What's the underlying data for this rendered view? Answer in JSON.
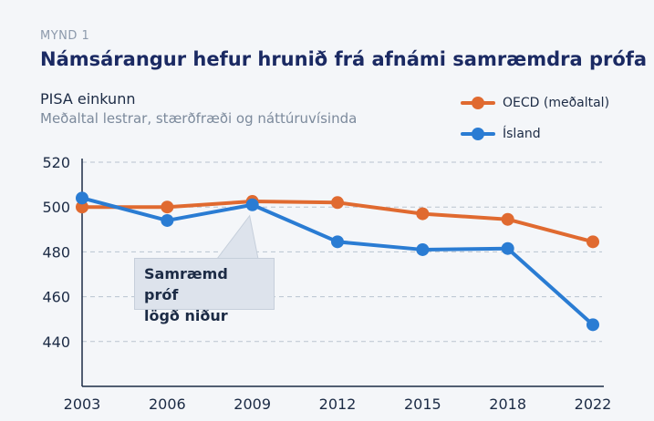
{
  "figure": {
    "label": "MYND 1",
    "title": "Námsárangur hefur hrunið frá afnámi samræmdra prófa",
    "measure_label": "PISA einkunn",
    "measure_sub": "Meðaltal lestrar, stærðfræði og náttúruvísinda"
  },
  "legend": [
    {
      "label": "OECD (meðaltal)",
      "color": "#e06a30"
    },
    {
      "label": "Ísland",
      "color": "#2a7cd3"
    }
  ],
  "annotation": {
    "line1": "Samræmd próf",
    "line2": "lögð niður"
  },
  "chart_data": {
    "type": "line",
    "title": "Námsárangur hefur hrunið frá afnámi samræmdra prófa",
    "xlabel": "",
    "ylabel": "PISA einkunn",
    "categories": [
      "2003",
      "2006",
      "2009",
      "2012",
      "2015",
      "2018",
      "2022"
    ],
    "yticks": [
      520,
      500,
      480,
      460,
      440
    ],
    "ylim": [
      420,
      520
    ],
    "grid": true,
    "legend_position": "top-right",
    "series": [
      {
        "name": "OECD (meðaltal)",
        "color": "#e06a30",
        "values": [
          500,
          500,
          502.5,
          502,
          497,
          494.5,
          484.5
        ]
      },
      {
        "name": "Ísland",
        "color": "#2a7cd3",
        "values": [
          504,
          494,
          501,
          484.5,
          481,
          481.5,
          447.5
        ]
      }
    ]
  }
}
